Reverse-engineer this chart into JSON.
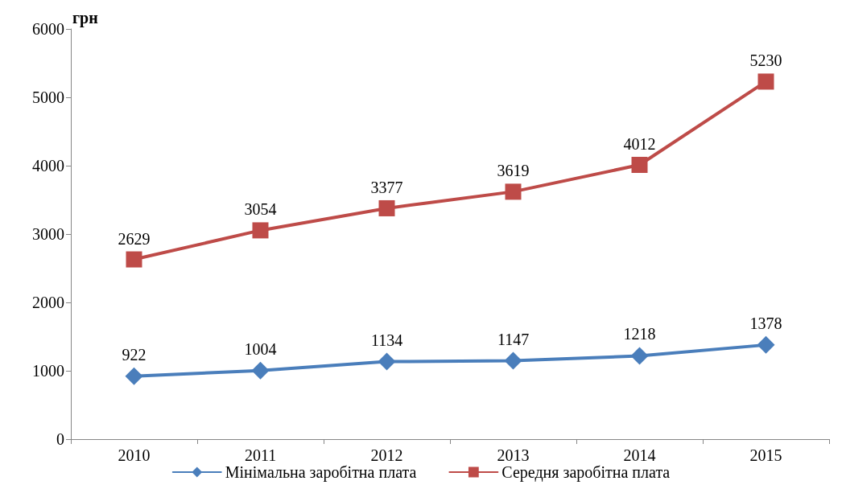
{
  "chart_data": {
    "type": "line",
    "ylabel": "грн",
    "categories": [
      "2010",
      "2011",
      "2012",
      "2013",
      "2014",
      "2015"
    ],
    "series": [
      {
        "name": "Мінімальна заробітна плата",
        "color": "#4a7ebb",
        "marker": "diamond",
        "values": [
          922,
          1004,
          1134,
          1147,
          1218,
          1378
        ]
      },
      {
        "name": "Середня заробітна плата",
        "color": "#be4b48",
        "marker": "square",
        "values": [
          2629,
          3054,
          3377,
          3619,
          4012,
          5230
        ]
      }
    ],
    "ylim": [
      0,
      6000
    ],
    "yticks": [
      0,
      1000,
      2000,
      3000,
      4000,
      5000,
      6000
    ],
    "grid": false,
    "legend": "bottom",
    "data_labels": true,
    "line_style": "solid"
  }
}
